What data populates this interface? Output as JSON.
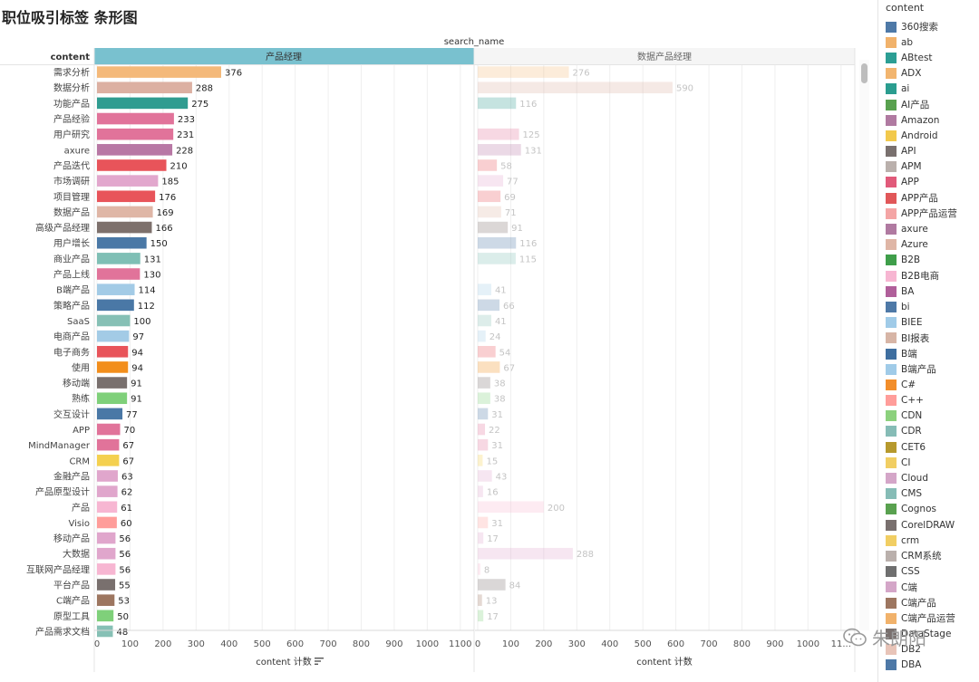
{
  "page": {
    "title": "职位吸引标签 条形图",
    "column_field": "search_name",
    "row_field": "content",
    "x_axis_label": "content 计数",
    "watermark": "朱朗阳"
  },
  "legend": {
    "title": "content",
    "items": [
      {
        "label": "360搜索",
        "color": "#4e79a7"
      },
      {
        "label": "ab",
        "color": "#f1b26b"
      },
      {
        "label": "ABtest",
        "color": "#2c9e94"
      },
      {
        "label": "ADX",
        "color": "#f2b56f"
      },
      {
        "label": "ai",
        "color": "#2a9d8f"
      },
      {
        "label": "AI产品",
        "color": "#59a14f"
      },
      {
        "label": "Amazon",
        "color": "#b07aa1"
      },
      {
        "label": "Android",
        "color": "#f2c94c"
      },
      {
        "label": "API",
        "color": "#79706e"
      },
      {
        "label": "APM",
        "color": "#bab0ac"
      },
      {
        "label": "APP",
        "color": "#e15a7a"
      },
      {
        "label": "APP产品",
        "color": "#e15759"
      },
      {
        "label": "APP产品运营",
        "color": "#f4a5a5"
      },
      {
        "label": "axure",
        "color": "#b07aa1"
      },
      {
        "label": "Azure",
        "color": "#dfb6a6"
      },
      {
        "label": "B2B",
        "color": "#3f9e4a"
      },
      {
        "label": "B2B电商",
        "color": "#f7b6d2"
      },
      {
        "label": "BA",
        "color": "#b05f9a"
      },
      {
        "label": "bi",
        "color": "#4e79a7"
      },
      {
        "label": "BIEE",
        "color": "#a0cbe8"
      },
      {
        "label": "BI报表",
        "color": "#d7b5a6"
      },
      {
        "label": "B端",
        "color": "#3f6fa0"
      },
      {
        "label": "B端产品",
        "color": "#a0cbe8"
      },
      {
        "label": "C#",
        "color": "#f28e2b"
      },
      {
        "label": "C++",
        "color": "#ff9d9a"
      },
      {
        "label": "CDN",
        "color": "#8cd17d"
      },
      {
        "label": "CDR",
        "color": "#86bcb6"
      },
      {
        "label": "CET6",
        "color": "#b6992d"
      },
      {
        "label": "CI",
        "color": "#f1ce63"
      },
      {
        "label": "Cloud",
        "color": "#d4a6c8"
      },
      {
        "label": "CMS",
        "color": "#86bcb6"
      },
      {
        "label": "Cognos",
        "color": "#59a14f"
      },
      {
        "label": "CorelDRAW",
        "color": "#79706e"
      },
      {
        "label": "crm",
        "color": "#f1ce63"
      },
      {
        "label": "CRM系统",
        "color": "#bab0ac"
      },
      {
        "label": "CSS",
        "color": "#6f6f6f"
      },
      {
        "label": "C端",
        "color": "#d4a6c8"
      },
      {
        "label": "C端产品",
        "color": "#9d7660"
      },
      {
        "label": "C端产品运营",
        "color": "#f1b26b"
      },
      {
        "label": "DataStage",
        "color": "#79706e"
      },
      {
        "label": "DB2",
        "color": "#e8c4b8"
      },
      {
        "label": "DBA",
        "color": "#4e79a7"
      }
    ]
  },
  "chart_data": {
    "type": "bar",
    "orientation": "horizontal",
    "xlabel": "content 计数",
    "row_header": "content",
    "column_header": "search_name",
    "xlim": [
      0,
      1150
    ],
    "x_ticks": [
      0,
      100,
      200,
      300,
      400,
      500,
      600,
      700,
      800,
      900,
      1000,
      1100
    ],
    "x_ticks_second_panel": [
      0,
      100,
      200,
      300,
      400,
      500,
      600,
      700,
      800,
      900,
      1000,
      "11..."
    ],
    "categories": [
      "需求分析",
      "数据分析",
      "功能产品",
      "产品经验",
      "用户研究",
      "axure",
      "产品迭代",
      "市场调研",
      "项目管理",
      "数据产品",
      "高级产品经理",
      "用户增长",
      "商业产品",
      "产品上线",
      "B端产品",
      "策略产品",
      "SaaS",
      "电商产品",
      "电子商务",
      "使用",
      "移动端",
      "熟练",
      "交互设计",
      "APP",
      "MindManager",
      "CRM",
      "金融产品",
      "产品原型设计",
      "产品",
      "Visio",
      "移动产品",
      "大数据",
      "互联网产品经理",
      "平台产品",
      "C端产品",
      "原型工具",
      "产品需求文档"
    ],
    "colors": [
      "#f4b97a",
      "#dcb0a2",
      "#2f9c90",
      "#e1739a",
      "#e1739a",
      "#b878a5",
      "#e8545a",
      "#e2a7cd",
      "#e8545a",
      "#dfb6a6",
      "#7d706c",
      "#4a78a6",
      "#7fbfb5",
      "#e1739a",
      "#a3cbe6",
      "#4a78a6",
      "#86c0b5",
      "#a3cbe6",
      "#e8545a",
      "#f28e1c",
      "#79706e",
      "#7fd07a",
      "#4a78a6",
      "#e1739a",
      "#e1739a",
      "#f4d04f",
      "#e0a6cc",
      "#e0a6cc",
      "#f7b6d2",
      "#ff9d9a",
      "#e0a6cc",
      "#e0a6cc",
      "#f7b6d2",
      "#79706e",
      "#9d7660",
      "#7fd07a",
      "#86c0b5"
    ],
    "series": [
      {
        "name": "产品经理",
        "values": [
          376,
          288,
          275,
          233,
          231,
          228,
          210,
          185,
          176,
          169,
          166,
          150,
          131,
          130,
          114,
          112,
          100,
          97,
          94,
          94,
          91,
          91,
          77,
          70,
          67,
          67,
          63,
          62,
          61,
          60,
          56,
          56,
          56,
          55,
          53,
          50,
          48
        ]
      },
      {
        "name": "数据产品经理",
        "values": [
          276,
          590,
          116,
          null,
          125,
          131,
          58,
          77,
          69,
          71,
          91,
          116,
          115,
          null,
          41,
          66,
          41,
          24,
          54,
          67,
          38,
          38,
          31,
          22,
          31,
          15,
          43,
          16,
          200,
          31,
          17,
          288,
          8,
          84,
          13,
          17,
          null
        ]
      }
    ]
  }
}
